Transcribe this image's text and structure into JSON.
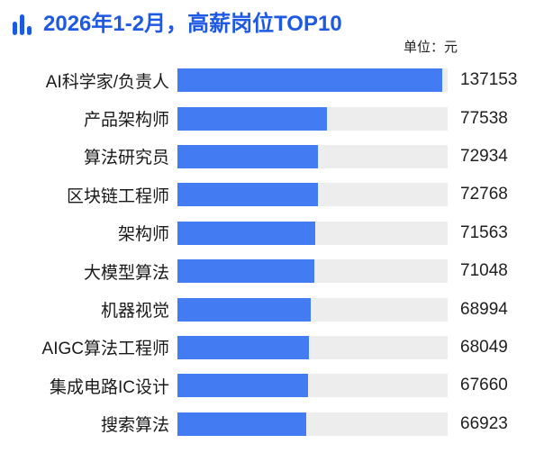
{
  "header": {
    "title": "2026年1-2月，高薪岗位TOP10",
    "unit_label": "单位：元"
  },
  "chart_data": {
    "type": "bar",
    "orientation": "horizontal",
    "title": "2026年1-2月，高薪岗位TOP10",
    "unit": "元",
    "categories": [
      "AI科学家/负责人",
      "产品架构师",
      "算法研究员",
      "区块链工程师",
      "架构师",
      "大模型算法",
      "机器视觉",
      "AIGC算法工程师",
      "集成电路IC设计",
      "搜索算法"
    ],
    "values": [
      137153,
      77538,
      72934,
      72768,
      71563,
      71048,
      68994,
      68049,
      67660,
      66923
    ],
    "xlim": [
      0,
      140000
    ],
    "value_labels_shown": true,
    "grid": false,
    "legend": false,
    "colors": {
      "title_blue": "#1e59e3",
      "bar_blue": "#437bf2",
      "track_gray": "#ededed",
      "label_text": "#1a1a1a",
      "value_text": "#1f1f1f"
    }
  }
}
